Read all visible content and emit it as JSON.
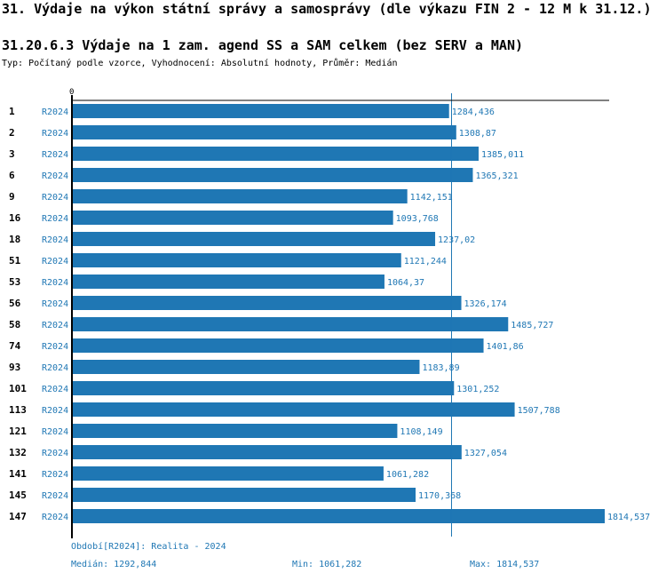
{
  "header": {
    "title": "31. Výdaje na výkon státní správy a samosprávy (dle výkazu FIN 2 - 12 M k 31.12.)",
    "subtitle": "31.20.6.3 Výdaje na 1 zam. agend SS a SAM celkem (bez SERV a MAN)",
    "meta": "Typ: Počítaný podle vzorce, Vyhodnocení: Absolutní hodnoty, Průměr: Medián"
  },
  "colors": {
    "bar": "#1f77b4",
    "label": "#1f77b4",
    "axis": "#000000"
  },
  "chart_data": {
    "type": "bar",
    "orientation": "horizontal",
    "axis_zero_label": "0",
    "series_label": "R2024",
    "categories": [
      "1",
      "2",
      "3",
      "6",
      "9",
      "16",
      "18",
      "51",
      "53",
      "56",
      "58",
      "74",
      "93",
      "101",
      "113",
      "121",
      "132",
      "141",
      "145",
      "147"
    ],
    "values": [
      1284.436,
      1308.87,
      1385.011,
      1365.321,
      1142.151,
      1093.768,
      1237.02,
      1121.244,
      1064.37,
      1326.174,
      1485.727,
      1401.86,
      1183.89,
      1301.252,
      1507.788,
      1108.149,
      1327.054,
      1061.282,
      1170.368,
      1814.537
    ],
    "value_labels": [
      "1284,436",
      "1308,87",
      "1385,011",
      "1365,321",
      "1142,151",
      "1093,768",
      "1237,02",
      "1121,244",
      "1064,37",
      "1326,174",
      "1485,727",
      "1401,86",
      "1183,89",
      "1301,252",
      "1507,788",
      "1108,149",
      "1327,054",
      "1061,282",
      "1170,368",
      "1814,537"
    ],
    "median": 1292.844,
    "xlim": [
      0,
      1832
    ]
  },
  "footer": {
    "period": "Období[R2024]: Realita - 2024",
    "median": "Medián: 1292,844",
    "min": "Min: 1061,282",
    "max": "Max: 1814,537"
  }
}
